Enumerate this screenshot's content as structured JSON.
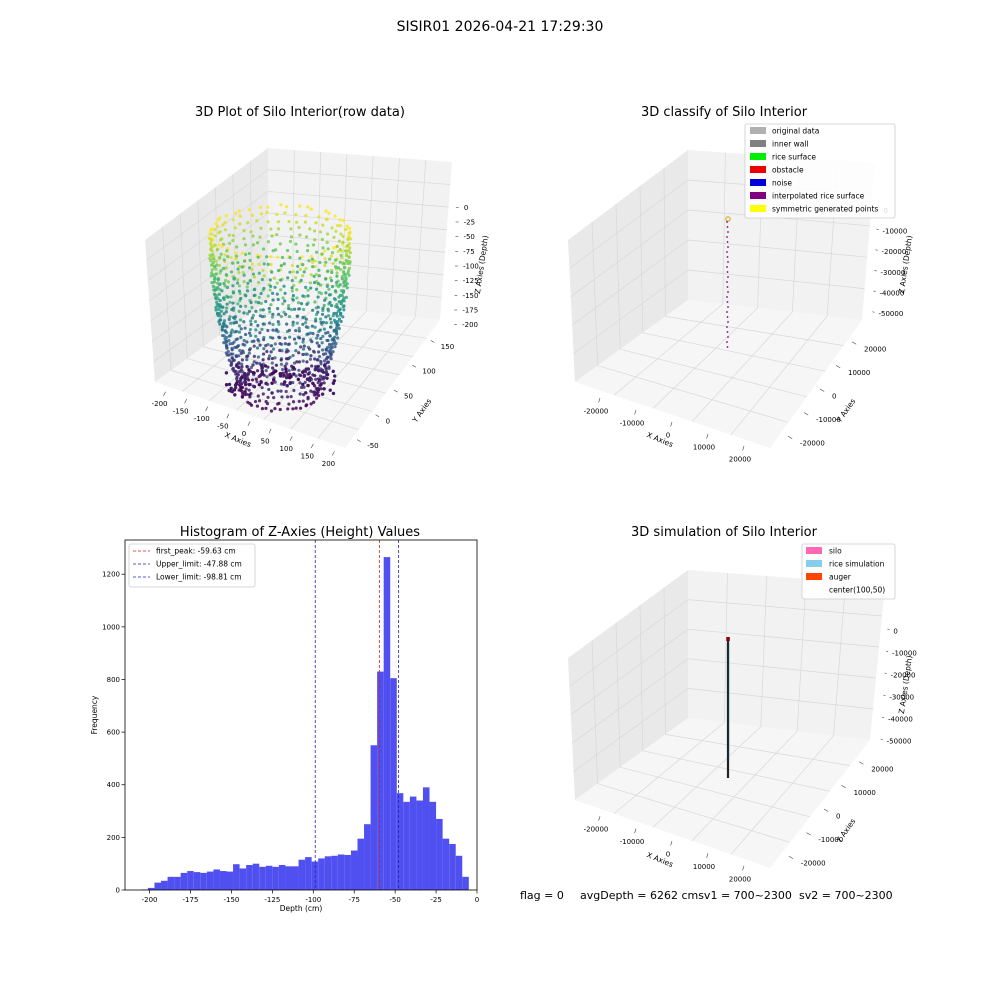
{
  "suptitle": "SISIR01 2026-04-21 17:29:30",
  "footer": {
    "flag": "flag = 0",
    "avg": "avgDepth = 6262 cmsv1 = 700~2300",
    "sv2": "sv2 = 700~2300"
  },
  "colors": {
    "hist_bar": "#5050f0",
    "peak_line": "#d02020",
    "limit_line": "#2020c0",
    "pane_left": "#e9e9e9",
    "pane_right": "#f2f2f2",
    "pane_floor": "#f6f6f6"
  },
  "chart_data": [
    {
      "type": "scatter",
      "projection": "3d",
      "title": "3D Plot of Silo Interior(row data)",
      "xlabel": "X Axies",
      "ylabel": "Y Axies",
      "zlabel": "Z Axies (Depth)",
      "xticks": [
        "-200",
        "-150",
        "-100",
        "-50",
        "0",
        "50",
        "100",
        "150",
        "200"
      ],
      "yticks": [
        "-50",
        "0",
        "50",
        "100",
        "150"
      ],
      "zticks": [
        "0",
        "-25",
        "-50",
        "-75",
        "-100",
        "-125",
        "-150",
        "-175",
        "-200"
      ],
      "colormap": "viridis"
    },
    {
      "type": "scatter",
      "projection": "3d",
      "title": "3D classify of Silo Interior",
      "xlabel": "X Axies",
      "ylabel": "Y Axies",
      "zlabel": "Z Axies (Depth)",
      "xticks": [
        "-20000",
        "-10000",
        "0",
        "10000",
        "20000"
      ],
      "yticks": [
        "-20000",
        "-10000",
        "0",
        "10000",
        "20000"
      ],
      "zticks": [
        "0",
        "-10000",
        "-20000",
        "-30000",
        "-40000",
        "-50000"
      ],
      "legend_position": "top-right",
      "legend": [
        {
          "label": "original data",
          "color": "#b0b0b0"
        },
        {
          "label": "inner wall",
          "color": "#808080"
        },
        {
          "label": "rice surface",
          "color": "#00ee00"
        },
        {
          "label": "obstacle",
          "color": "#ee0000"
        },
        {
          "label": "noise",
          "color": "#0000dd"
        },
        {
          "label": "interpolated rice surface",
          "color": "#800080"
        },
        {
          "label": "symmetric generated points",
          "color": "#ffff00"
        }
      ]
    },
    {
      "type": "bar",
      "title": "Histogram of Z-Axies (Height) Values",
      "xlabel": "Depth (cm)",
      "ylabel": "Frequency",
      "xlim": [
        -215,
        0
      ],
      "ylim": [
        0,
        1330
      ],
      "xticks": [
        -200,
        -175,
        -150,
        -125,
        -100,
        -75,
        -50,
        -25,
        0
      ],
      "yticks": [
        0,
        200,
        400,
        600,
        800,
        1000,
        1200
      ],
      "bin_start": -205,
      "bin_width": 4,
      "values": [
        2,
        8,
        28,
        35,
        50,
        50,
        65,
        72,
        68,
        65,
        70,
        78,
        72,
        70,
        98,
        82,
        95,
        100,
        88,
        92,
        88,
        95,
        90,
        90,
        115,
        125,
        108,
        120,
        128,
        130,
        135,
        133,
        150,
        195,
        250,
        550,
        830,
        1265,
        805,
        368,
        335,
        355,
        340,
        390,
        335,
        270,
        195,
        175,
        130,
        50
      ],
      "legend_position": "top-left",
      "lines": [
        {
          "label": "first_peak: -59.63 cm",
          "x": -59.63,
          "color": "#d02020"
        },
        {
          "label": "Upper_limit: -47.88 cm",
          "x": -47.88,
          "color": "#2020c0"
        },
        {
          "label": "Lower_limit: -98.81 cm",
          "x": -98.81,
          "color": "#2020c0"
        }
      ]
    },
    {
      "type": "line",
      "projection": "3d",
      "title": "3D simulation of Silo Interior",
      "xlabel": "X Axies",
      "ylabel": "Y Axies",
      "zlabel": "Z Axies (Depth)",
      "xticks": [
        "-20000",
        "-10000",
        "0",
        "10000",
        "20000"
      ],
      "yticks": [
        "-20000",
        "-10000",
        "0",
        "10000",
        "20000"
      ],
      "zticks": [
        "0",
        "-10000",
        "-20000",
        "-30000",
        "-40000",
        "-50000"
      ],
      "legend_position": "top-right",
      "legend": [
        {
          "label": "silo",
          "color": "#ff69b4"
        },
        {
          "label": "rice simulation",
          "color": "#87ceeb"
        },
        {
          "label": "auger",
          "color": "#ff4500"
        },
        {
          "label": "center(100,50)",
          "color": "#ffffff"
        }
      ]
    }
  ]
}
